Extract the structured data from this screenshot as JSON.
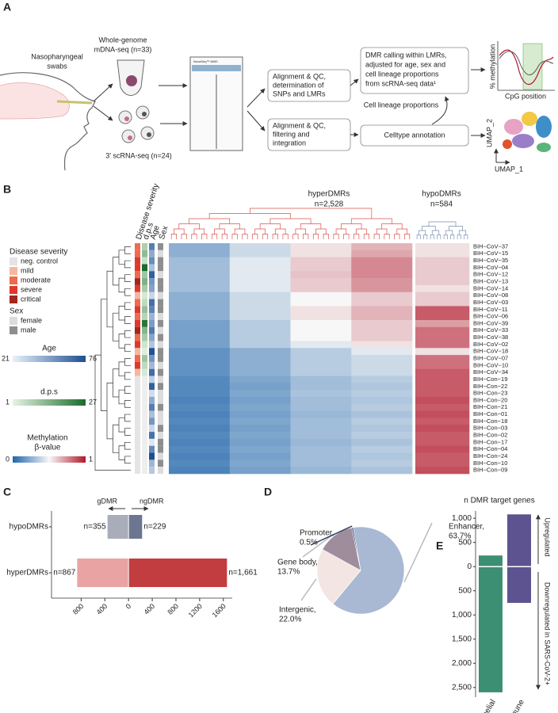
{
  "panel_a": {
    "label": "A",
    "swab": [
      "Nasopharyngeal",
      "swabs"
    ],
    "mdna": [
      "Whole-genome",
      "mDNA-seq (n=33)"
    ],
    "scrna": "3' scRNA-seq (n=24)",
    "sequencer": "NovaSeq™ 6000",
    "align1": [
      "Alignment & QC,",
      "determination of",
      "SNPs and LMRs"
    ],
    "align2": [
      "Alignment & QC,",
      "filtering and",
      "integration"
    ],
    "dmr": [
      "DMR calling within LMRs,",
      "adjusted for age, sex and",
      "cell lineage proportions",
      "from scRNA-seq data¹"
    ],
    "lineage": "Cell lineage proportions",
    "annot": "Celltype annotation",
    "meth_ylabel": "% methylation",
    "meth_xlabel": "CpG position",
    "umap_y": "UMAP_2",
    "umap_x": "UMAP_1"
  },
  "panel_b": {
    "label": "B",
    "annotation_headers": [
      "Disease severity",
      "d.p.s",
      "Age",
      "Sex"
    ],
    "hyper_title": "hyperDMRs",
    "hyper_n": "n=2,528",
    "hypo_title": "hypoDMRs",
    "hypo_n": "n=584",
    "severity_legend": {
      "title": "Disease severity",
      "names": [
        "neg. control",
        "mild",
        "moderate",
        "severe",
        "critical"
      ],
      "colors": [
        "#e4e4e4",
        "#f5b7a1",
        "#ee6b4d",
        "#e0392b",
        "#a1281e"
      ]
    },
    "sex_legend": {
      "title": "Sex",
      "names": [
        "female",
        "male"
      ],
      "colors": [
        "#dcdcdc",
        "#8e8e8e"
      ]
    },
    "age_legend": {
      "title": "Age",
      "range": [
        21,
        76
      ],
      "colors": [
        "#e8f1fa",
        "#1d4f91"
      ]
    },
    "dps_legend": {
      "title": "d.p.s",
      "range": [
        1,
        27
      ],
      "colors": [
        "#e5f4e3",
        "#1b6b2c"
      ]
    },
    "methylation_legend": {
      "title": [
        "Methylation",
        "β-value"
      ],
      "range": [
        0,
        1
      ],
      "colors": [
        "#2166ac",
        "#f7f7f7",
        "#b2182b"
      ]
    },
    "samples": [
      "BIH−CoV−37",
      "BIH−CoV−15",
      "BIH−CoV−35",
      "BIH−CoV−04",
      "BIH−CoV−12",
      "BIH−CoV−13",
      "BIH−CoV−14",
      "BIH−CoV−08",
      "BIH−CoV−03",
      "BIH−CoV−11",
      "BIH−CoV−06",
      "BIH−CoV−39",
      "BIH−CoV−33",
      "BIH−CoV−38",
      "BIH−CoV−02",
      "BIH−CoV−18",
      "BIH−CoV−07",
      "BIH−CoV−10",
      "BIH−CoV−34",
      "BIH−Con−19",
      "BIH−Con−22",
      "BIH−Con−23",
      "BIH−Con−20",
      "BIH−Con−21",
      "BIH−Con−01",
      "BIH−Con−18",
      "BIH−Con−03",
      "BIH−Con−02",
      "BIH−Con−17",
      "BIH−Con−04",
      "BIH−Con−24",
      "BIH−Con−10",
      "BIH−Con−09"
    ],
    "severity": [
      "moderate",
      "moderate",
      "severe",
      "severe",
      "moderate",
      "critical",
      "severe",
      "mild",
      "moderate",
      "severe",
      "moderate",
      "severe",
      "critical",
      "moderate",
      "severe",
      "mild",
      "moderate",
      "severe",
      "mild",
      "neg. control",
      "neg. control",
      "neg. control",
      "neg. control",
      "neg. control",
      "neg. control",
      "neg. control",
      "neg. control",
      "neg. control",
      "neg. control",
      "neg. control",
      "neg. control",
      "neg. control",
      "neg. control"
    ],
    "dps": [
      8,
      12,
      5,
      27,
      10,
      14,
      9,
      3,
      6,
      11,
      7,
      25,
      13,
      9,
      4,
      2,
      10,
      6,
      3,
      null,
      null,
      null,
      null,
      null,
      null,
      null,
      null,
      null,
      null,
      null,
      null,
      null,
      null
    ],
    "age": [
      60,
      45,
      55,
      38,
      70,
      52,
      48,
      30,
      65,
      58,
      42,
      50,
      61,
      47,
      36,
      75,
      53,
      40,
      66,
      33,
      70,
      28,
      45,
      60,
      38,
      52,
      30,
      64,
      24,
      56,
      76,
      41,
      35
    ],
    "sex": [
      "male",
      "female",
      "male",
      "male",
      "female",
      "male",
      "male",
      "female",
      "male",
      "male",
      "female",
      "male",
      "female",
      "male",
      "female",
      "male",
      "male",
      "female",
      "male",
      "female",
      "male",
      "female",
      "female",
      "male",
      "female",
      "female",
      "male",
      "female",
      "male",
      "male",
      "female",
      "male",
      "female"
    ],
    "methylation": [
      [
        0.25,
        0.4,
        0.55,
        0.65,
        0.55
      ],
      [
        0.25,
        0.4,
        0.55,
        0.68,
        0.55
      ],
      [
        0.3,
        0.45,
        0.6,
        0.75,
        0.6
      ],
      [
        0.3,
        0.45,
        0.6,
        0.75,
        0.6
      ],
      [
        0.3,
        0.45,
        0.62,
        0.75,
        0.6
      ],
      [
        0.3,
        0.45,
        0.6,
        0.72,
        0.6
      ],
      [
        0.3,
        0.45,
        0.6,
        0.72,
        0.55
      ],
      [
        0.25,
        0.4,
        0.5,
        0.6,
        0.6
      ],
      [
        0.25,
        0.4,
        0.5,
        0.6,
        0.6
      ],
      [
        0.25,
        0.4,
        0.55,
        0.65,
        0.85
      ],
      [
        0.25,
        0.4,
        0.55,
        0.65,
        0.85
      ],
      [
        0.2,
        0.35,
        0.5,
        0.6,
        0.7
      ],
      [
        0.2,
        0.35,
        0.5,
        0.6,
        0.8
      ],
      [
        0.2,
        0.35,
        0.5,
        0.6,
        0.8
      ],
      [
        0.2,
        0.35,
        0.45,
        0.55,
        0.8
      ],
      [
        0.15,
        0.25,
        0.35,
        0.45,
        0.55
      ],
      [
        0.15,
        0.25,
        0.35,
        0.4,
        0.8
      ],
      [
        0.15,
        0.25,
        0.35,
        0.4,
        0.8
      ],
      [
        0.15,
        0.25,
        0.35,
        0.4,
        0.85
      ],
      [
        0.12,
        0.22,
        0.3,
        0.35,
        0.85
      ],
      [
        0.12,
        0.2,
        0.3,
        0.33,
        0.85
      ],
      [
        0.12,
        0.22,
        0.32,
        0.35,
        0.85
      ],
      [
        0.1,
        0.2,
        0.3,
        0.33,
        0.88
      ],
      [
        0.12,
        0.22,
        0.3,
        0.35,
        0.85
      ],
      [
        0.1,
        0.2,
        0.28,
        0.32,
        0.88
      ],
      [
        0.12,
        0.22,
        0.3,
        0.35,
        0.85
      ],
      [
        0.1,
        0.2,
        0.3,
        0.33,
        0.88
      ],
      [
        0.12,
        0.22,
        0.3,
        0.35,
        0.85
      ],
      [
        0.1,
        0.2,
        0.28,
        0.32,
        0.85
      ],
      [
        0.12,
        0.22,
        0.3,
        0.35,
        0.88
      ],
      [
        0.1,
        0.2,
        0.3,
        0.33,
        0.85
      ],
      [
        0.12,
        0.22,
        0.3,
        0.35,
        0.85
      ],
      [
        0.1,
        0.2,
        0.28,
        0.32,
        0.88
      ]
    ]
  },
  "panel_c": {
    "type": "bar",
    "label": "C",
    "left_label": "gDMR",
    "right_label": "ngDMR",
    "categories": [
      "hypoDMRs",
      "hyperDMRs"
    ],
    "series": [
      {
        "name": "gDMR",
        "colors": [
          "#a9adb9",
          "#e9a3a3"
        ],
        "values": [
          -355,
          -867
        ],
        "value_labels": [
          "n=355",
          "n=867"
        ]
      },
      {
        "name": "ngDMR",
        "colors": [
          "#6c7691",
          "#c23d3f"
        ],
        "values": [
          229,
          1661
        ],
        "value_labels": [
          "n=229",
          "n=1,661"
        ]
      }
    ],
    "xlim": [
      -1300,
      1750
    ],
    "xticks": [
      {
        "value": -800,
        "label": "800"
      },
      {
        "value": -400,
        "label": "400"
      },
      0,
      400,
      800,
      1200,
      1600
    ]
  },
  "panel_d": {
    "type": "pie",
    "label": "D",
    "categories": [
      "Enhancer",
      "Intergenic",
      "Gene body",
      "Promoter"
    ],
    "values": [
      63.7,
      22.0,
      13.7,
      0.5
    ],
    "value_labels": [
      "63.7%",
      "22.0%",
      "13.7%",
      "0.5%"
    ],
    "category_labels": [
      "Enhancer,",
      "Intergenic,",
      "Gene body,",
      "Promoter,"
    ],
    "colors": [
      "#a9b9d4",
      "#f3e5e1",
      "#9f8d9d",
      "#2d3f66"
    ]
  },
  "panel_e": {
    "type": "bar",
    "label": "E",
    "title": "n DMR target genes",
    "up_label": "Upregulated",
    "down_label": "Downregulated in SARS-CoV-2+",
    "categories": [
      "Epithelial",
      "Immune"
    ],
    "colors": [
      "#3d8f74",
      "#5e5391"
    ],
    "series": [
      {
        "name": "Upregulated",
        "values": [
          230,
          1080
        ]
      },
      {
        "name": "Downregulated in SARS-CoV-2+",
        "values": [
          -2600,
          -750
        ]
      }
    ],
    "ylim": [
      -2700,
      1150
    ],
    "yticks": [
      {
        "value": 1000,
        "label": "1,000"
      },
      500,
      0,
      {
        "value": -500,
        "label": "500"
      },
      {
        "value": -1000,
        "label": "1,000"
      },
      {
        "value": -1500,
        "label": "1,500"
      },
      {
        "value": -2000,
        "label": "2,000"
      },
      {
        "value": -2500,
        "label": "2,500"
      }
    ]
  }
}
